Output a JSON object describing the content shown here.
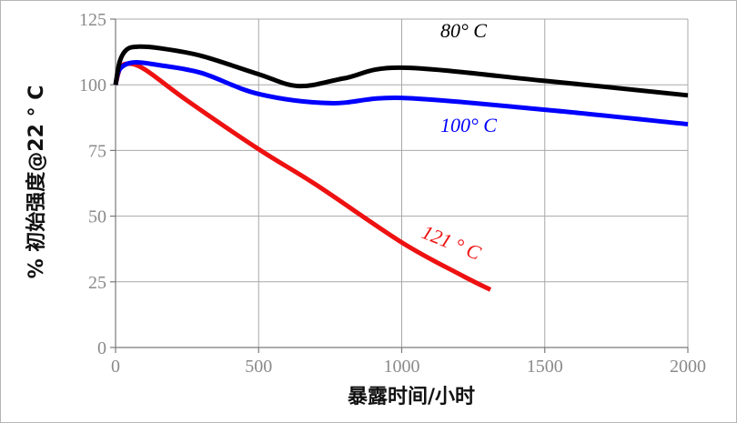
{
  "chart_data": {
    "type": "line",
    "title": "",
    "xlabel": "暴露时间/小时",
    "ylabel": "% 初始强度@22 ° C",
    "xlim": [
      0,
      2000
    ],
    "ylim": [
      0,
      125
    ],
    "xticks": [
      0,
      500,
      1000,
      1500,
      2000
    ],
    "yticks": [
      0,
      25,
      50,
      75,
      100,
      125
    ],
    "grid": true,
    "legend": "inline",
    "series": [
      {
        "name": "80° C",
        "color": "#000000",
        "label_x": 1135,
        "label_y": 118,
        "x": [
          0,
          15,
          40,
          80,
          150,
          300,
          500,
          640,
          800,
          1000,
          1500,
          2000
        ],
        "y": [
          100,
          109,
          113.5,
          114.5,
          114,
          111,
          104,
          99.5,
          102.5,
          106.5,
          101.5,
          96
        ]
      },
      {
        "name": "100° C",
        "color": "#0000ff",
        "label_x": 1135,
        "label_y": 82,
        "x": [
          0,
          15,
          60,
          150,
          300,
          500,
          750,
          1000,
          1500,
          2000
        ],
        "y": [
          100,
          106,
          108.5,
          107.5,
          104.5,
          96.5,
          93,
          95,
          90.5,
          85
        ]
      },
      {
        "name": "121 ° C",
        "color": "#ee1111",
        "label_x": 1065,
        "label_y": 42,
        "x": [
          0,
          15,
          40,
          100,
          250,
          500,
          700,
          1000,
          1200,
          1310
        ],
        "y": [
          100,
          106,
          108,
          106,
          94,
          75.5,
          62,
          40,
          28,
          22
        ]
      }
    ]
  }
}
